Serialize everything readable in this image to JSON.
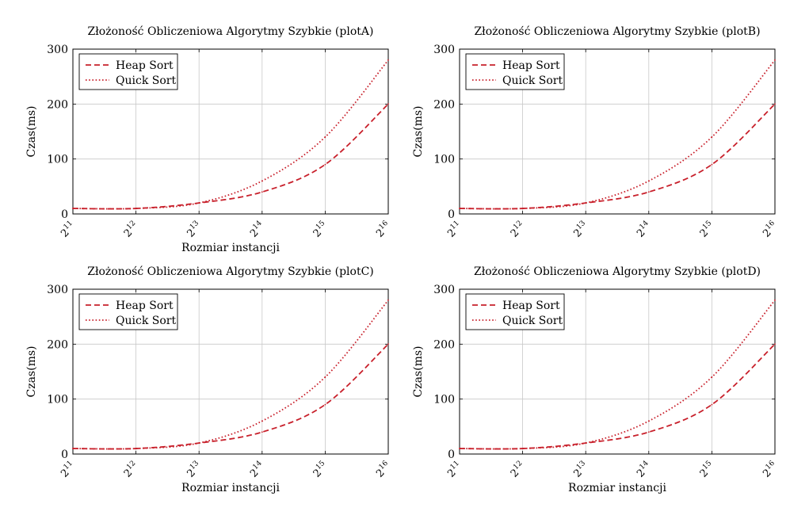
{
  "chart_data": [
    {
      "type": "line",
      "title": "Złożoność Obliczeniowa Algorytmy Szybkie (plotA)",
      "xlabel": "Rozmiar instancji",
      "ylabel": "Czas(ms)",
      "x": [
        2048,
        4096,
        8192,
        16384,
        32768,
        65536
      ],
      "x_scale": "log2",
      "xtick_labels": [
        [
          "2",
          "11"
        ],
        [
          "2",
          "12"
        ],
        [
          "2",
          "13"
        ],
        [
          "2",
          "14"
        ],
        [
          "2",
          "15"
        ],
        [
          "2",
          "16"
        ]
      ],
      "xlim": [
        2048,
        65536
      ],
      "ylim": [
        0,
        300
      ],
      "yticks": [
        0,
        100,
        200,
        300
      ],
      "grid": true,
      "legend_position": "top-left",
      "series": [
        {
          "name": "Heap Sort",
          "style": "dashed",
          "color": "#c8202b",
          "values": [
            10,
            10,
            20,
            40,
            90,
            200
          ]
        },
        {
          "name": "Quick Sort",
          "style": "dotted",
          "color": "#c8202b",
          "values": [
            10,
            10,
            20,
            60,
            140,
            280
          ]
        }
      ]
    },
    {
      "type": "line",
      "title": "Złożoność Obliczeniowa Algorytmy Szybkie (plotB)",
      "xlabel": "",
      "ylabel": "Czas(ms)",
      "x": [
        2048,
        4096,
        8192,
        16384,
        32768,
        65536
      ],
      "x_scale": "log2",
      "xtick_labels": [
        [
          "2",
          "11"
        ],
        [
          "2",
          "12"
        ],
        [
          "2",
          "13"
        ],
        [
          "2",
          "14"
        ],
        [
          "2",
          "15"
        ],
        [
          "2",
          "16"
        ]
      ],
      "xlim": [
        2048,
        65536
      ],
      "ylim": [
        0,
        300
      ],
      "yticks": [
        0,
        100,
        200,
        300
      ],
      "grid": true,
      "legend_position": "top-left",
      "series": [
        {
          "name": "Heap Sort",
          "style": "dashed",
          "color": "#c8202b",
          "values": [
            10,
            10,
            20,
            40,
            90,
            200
          ]
        },
        {
          "name": "Quick Sort",
          "style": "dotted",
          "color": "#c8202b",
          "values": [
            10,
            10,
            20,
            60,
            140,
            280
          ]
        }
      ]
    },
    {
      "type": "line",
      "title": "Złożoność Obliczeniowa Algorytmy Szybkie (plotC)",
      "xlabel": "Rozmiar instancji",
      "ylabel": "Czas(ms)",
      "x": [
        2048,
        4096,
        8192,
        16384,
        32768,
        65536
      ],
      "x_scale": "log2",
      "xtick_labels": [
        [
          "2",
          "11"
        ],
        [
          "2",
          "12"
        ],
        [
          "2",
          "13"
        ],
        [
          "2",
          "14"
        ],
        [
          "2",
          "15"
        ],
        [
          "2",
          "16"
        ]
      ],
      "xlim": [
        2048,
        65536
      ],
      "ylim": [
        0,
        300
      ],
      "yticks": [
        0,
        100,
        200,
        300
      ],
      "grid": true,
      "legend_position": "top-left",
      "series": [
        {
          "name": "Heap Sort",
          "style": "dashed",
          "color": "#c8202b",
          "values": [
            10,
            10,
            20,
            40,
            90,
            200
          ]
        },
        {
          "name": "Quick Sort",
          "style": "dotted",
          "color": "#c8202b",
          "values": [
            10,
            10,
            20,
            60,
            140,
            280
          ]
        }
      ]
    },
    {
      "type": "line",
      "title": "Złożoność Obliczeniowa Algorytmy Szybkie (plotD)",
      "xlabel": "Rozmiar instancji",
      "ylabel": "Czas(ms)",
      "x": [
        2048,
        4096,
        8192,
        16384,
        32768,
        65536
      ],
      "x_scale": "log2",
      "xtick_labels": [
        [
          "2",
          "11"
        ],
        [
          "2",
          "12"
        ],
        [
          "2",
          "13"
        ],
        [
          "2",
          "14"
        ],
        [
          "2",
          "15"
        ],
        [
          "2",
          "16"
        ]
      ],
      "xlim": [
        2048,
        65536
      ],
      "ylim": [
        0,
        300
      ],
      "yticks": [
        0,
        100,
        200,
        300
      ],
      "grid": true,
      "legend_position": "top-left",
      "series": [
        {
          "name": "Heap Sort",
          "style": "dashed",
          "color": "#c8202b",
          "values": [
            10,
            10,
            20,
            40,
            90,
            200
          ]
        },
        {
          "name": "Quick Sort",
          "style": "dotted",
          "color": "#c8202b",
          "values": [
            10,
            10,
            20,
            60,
            140,
            280
          ]
        }
      ]
    }
  ]
}
